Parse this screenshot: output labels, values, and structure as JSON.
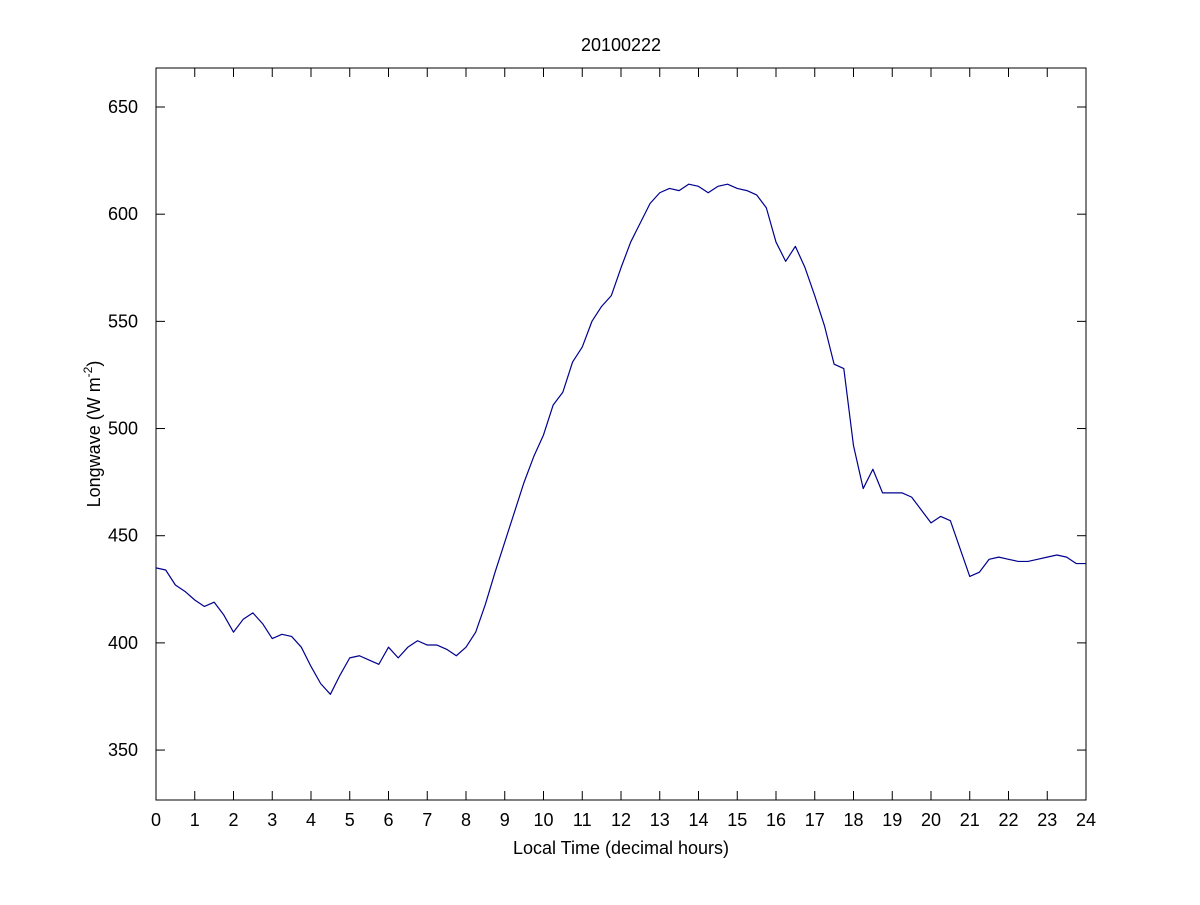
{
  "chart_data": {
    "type": "line",
    "title": "20100222",
    "xlabel": "Local Time (decimal hours)",
    "ylabel": {
      "text": "Longwave (W m",
      "superscript": "-2",
      "suffix": ")"
    },
    "x": [
      0,
      0.25,
      0.5,
      0.75,
      1,
      1.25,
      1.5,
      1.75,
      2,
      2.25,
      2.5,
      2.75,
      3,
      3.25,
      3.5,
      3.75,
      4,
      4.25,
      4.5,
      4.75,
      5,
      5.25,
      5.5,
      5.75,
      6,
      6.25,
      6.5,
      6.75,
      7,
      7.25,
      7.5,
      7.75,
      8,
      8.25,
      8.5,
      8.75,
      9,
      9.25,
      9.5,
      9.75,
      10,
      10.25,
      10.5,
      10.75,
      11,
      11.25,
      11.5,
      11.75,
      12,
      12.25,
      12.5,
      12.75,
      13,
      13.25,
      13.5,
      13.75,
      14,
      14.25,
      14.5,
      14.75,
      15,
      15.25,
      15.5,
      15.75,
      16,
      16.25,
      16.5,
      16.75,
      17,
      17.25,
      17.5,
      17.75,
      18,
      18.25,
      18.5,
      18.75,
      19,
      19.25,
      19.5,
      19.75,
      20,
      20.25,
      20.5,
      20.75,
      21,
      21.25,
      21.5,
      21.75,
      22,
      22.25,
      22.5,
      22.75,
      23,
      23.25,
      23.5,
      23.75,
      24
    ],
    "series": [
      {
        "color": "#00008f",
        "values": [
          435,
          434,
          427,
          424,
          420,
          417,
          419,
          413,
          405,
          411,
          414,
          409,
          402,
          404,
          403,
          398,
          389,
          381,
          376,
          385,
          393,
          394,
          392,
          390,
          398,
          393,
          398,
          401,
          399,
          399,
          397,
          394,
          398,
          405,
          418,
          433,
          447,
          461,
          475,
          487,
          497,
          511,
          517,
          531,
          538,
          550,
          557,
          562,
          575,
          587,
          596,
          605,
          610,
          612,
          611,
          614,
          613,
          610,
          613,
          614,
          612,
          611,
          609,
          603,
          587,
          578,
          585,
          575,
          562,
          548,
          530,
          528,
          492,
          472,
          481,
          470,
          470,
          470,
          468,
          462,
          456,
          459,
          457,
          444,
          431,
          433,
          439,
          440,
          439,
          438,
          438,
          439,
          440,
          441,
          440,
          437,
          437
        ]
      }
    ],
    "xlim": [
      0,
      24
    ],
    "xticks": [
      0,
      1,
      2,
      3,
      4,
      5,
      6,
      7,
      8,
      9,
      10,
      11,
      12,
      13,
      14,
      15,
      16,
      17,
      18,
      19,
      20,
      21,
      22,
      23,
      24
    ],
    "ylim": [
      326.7,
      668.2
    ],
    "yticks": [
      350,
      400,
      450,
      500,
      550,
      600,
      650
    ],
    "grid": false
  }
}
